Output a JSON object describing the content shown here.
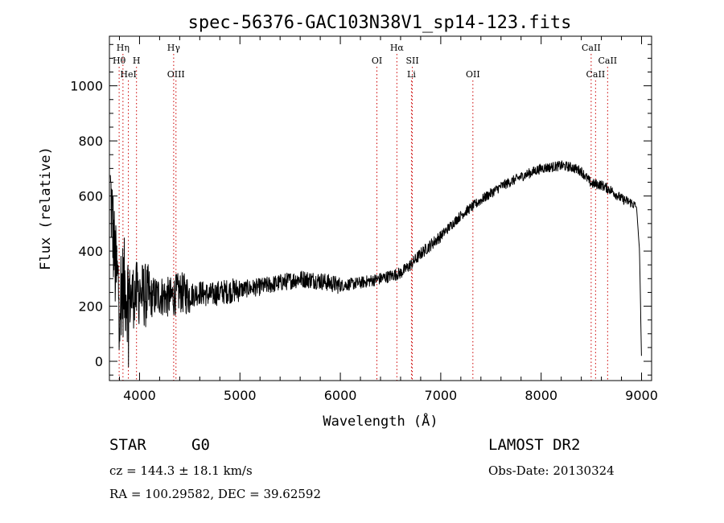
{
  "chart_data": {
    "type": "line",
    "title": "spec-56376-GAC103N38V1_sp14-123.fits",
    "xlabel": "Wavelength (Å)",
    "ylabel": "Flux (relative)",
    "xlim": [
      3700,
      9100
    ],
    "ylim": [
      -70,
      1180
    ],
    "xticks": [
      4000,
      5000,
      6000,
      7000,
      8000,
      9000
    ],
    "yticks": [
      0,
      200,
      400,
      600,
      800,
      1000
    ],
    "grid": false,
    "line_color": "#000000",
    "marker_color": "#cc0000",
    "spectrum_anchors": [
      [
        3710,
        620
      ],
      [
        3760,
        330
      ],
      [
        3800,
        250
      ],
      [
        3850,
        270
      ],
      [
        3900,
        230
      ],
      [
        3950,
        240
      ],
      [
        4000,
        250
      ],
      [
        4100,
        230
      ],
      [
        4200,
        240
      ],
      [
        4300,
        230
      ],
      [
        4400,
        250
      ],
      [
        4500,
        240
      ],
      [
        4600,
        250
      ],
      [
        4700,
        240
      ],
      [
        4800,
        250
      ],
      [
        4900,
        255
      ],
      [
        5000,
        260
      ],
      [
        5200,
        270
      ],
      [
        5400,
        285
      ],
      [
        5600,
        300
      ],
      [
        5800,
        292
      ],
      [
        6000,
        275
      ],
      [
        6200,
        285
      ],
      [
        6400,
        300
      ],
      [
        6600,
        320
      ],
      [
        6700,
        350
      ],
      [
        6800,
        390
      ],
      [
        7000,
        455
      ],
      [
        7200,
        530
      ],
      [
        7400,
        585
      ],
      [
        7600,
        635
      ],
      [
        7800,
        670
      ],
      [
        8000,
        700
      ],
      [
        8200,
        710
      ],
      [
        8300,
        705
      ],
      [
        8400,
        690
      ],
      [
        8500,
        645
      ],
      [
        8600,
        640
      ],
      [
        8700,
        620
      ],
      [
        8800,
        590
      ],
      [
        8900,
        575
      ],
      [
        8950,
        560
      ],
      [
        8980,
        400
      ],
      [
        9000,
        0
      ]
    ],
    "spectral_lines": [
      {
        "label": "Hη",
        "wavelength": 3835,
        "row": 1
      },
      {
        "label": "Hθ",
        "wavelength": 3797,
        "row": 2
      },
      {
        "label": "H",
        "wavelength": 3970,
        "row": 2
      },
      {
        "label": "HeI",
        "wavelength": 3889,
        "row": 3
      },
      {
        "label": "Hγ",
        "wavelength": 4340,
        "row": 1
      },
      {
        "label": "OIII",
        "wavelength": 4363,
        "row": 3
      },
      {
        "label": "OI",
        "wavelength": 6364,
        "row": 2
      },
      {
        "label": "Hα",
        "wavelength": 6563,
        "row": 1
      },
      {
        "label": "SII",
        "wavelength": 6717,
        "row": 2
      },
      {
        "label": "Li",
        "wavelength": 6708,
        "row": 3
      },
      {
        "label": "OII",
        "wavelength": 7320,
        "row": 3
      },
      {
        "label": "CaII",
        "wavelength": 8498,
        "row": 1
      },
      {
        "label": "CaII",
        "wavelength": 8662,
        "row": 2
      },
      {
        "label": "CaII",
        "wavelength": 8542,
        "row": 3
      }
    ]
  },
  "info": {
    "class_label": "STAR",
    "subclass": "G0",
    "survey": "LAMOST DR2",
    "redshift": "cz = 144.3 ± 18.1 km/s",
    "obs_date": "Obs-Date: 20130324",
    "coords": "RA = 100.29582, DEC =  39.62592"
  }
}
